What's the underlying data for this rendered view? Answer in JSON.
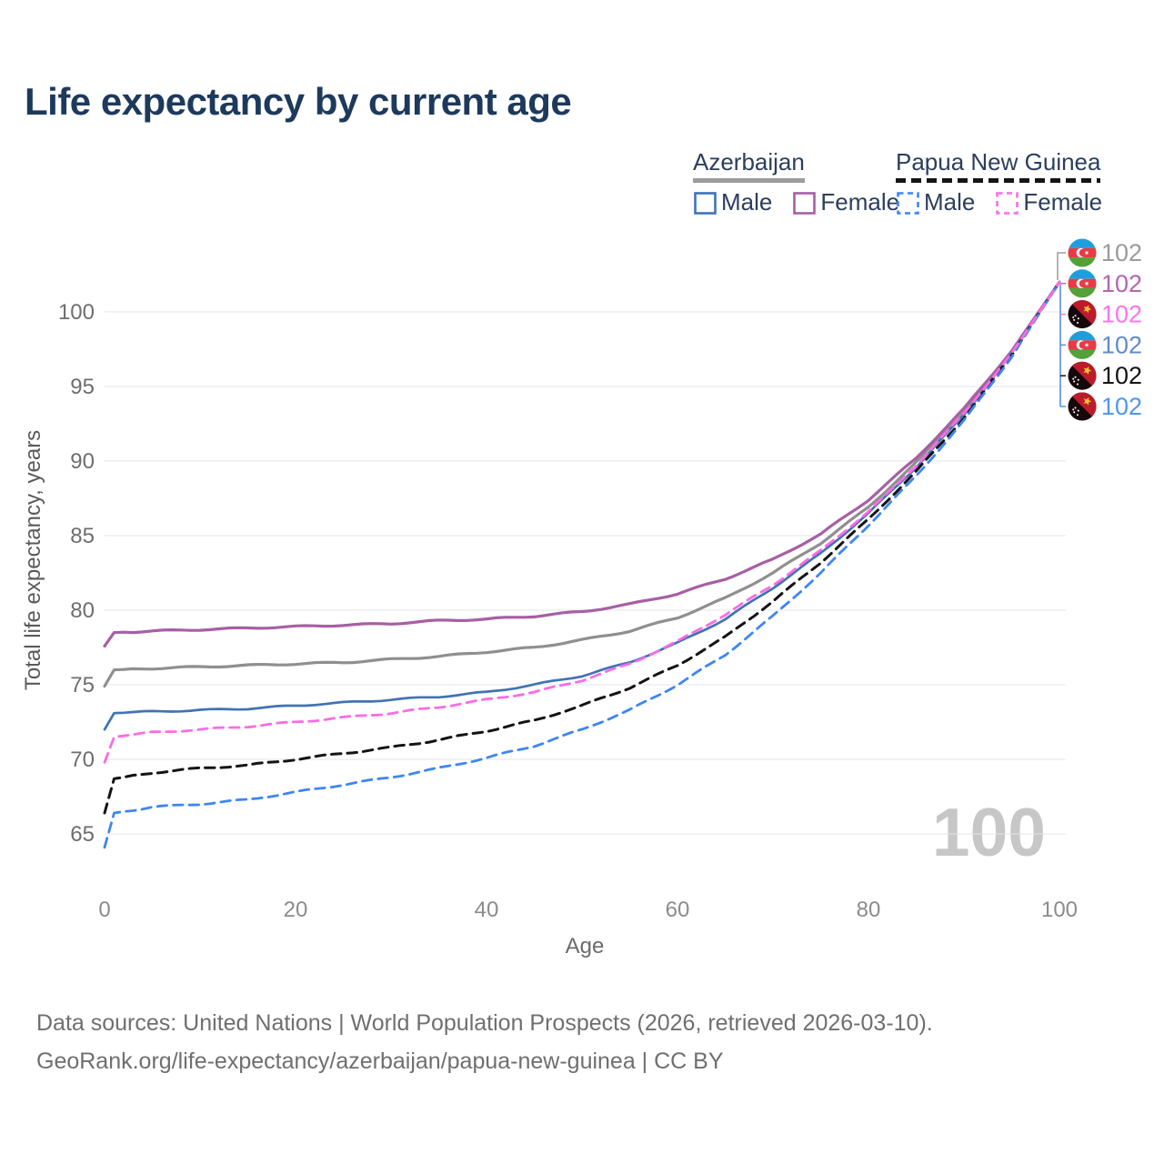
{
  "title": "Life expectancy by current age",
  "legend": {
    "groups": [
      {
        "country": "Azerbaijan",
        "underline": {
          "style": "solid",
          "color": "#9c9c9c"
        },
        "items": [
          {
            "label": "Male",
            "color": "#4173b5",
            "dash": false
          },
          {
            "label": "Female",
            "color": "#a75fa4",
            "dash": false
          }
        ]
      },
      {
        "country": "Papua New Guinea",
        "underline": {
          "style": "dashed",
          "color": "#151515"
        },
        "items": [
          {
            "label": "Male",
            "color": "#3e86f2",
            "dash": true
          },
          {
            "label": "Female",
            "color": "#fb6ce4",
            "dash": true
          }
        ]
      }
    ]
  },
  "chart_data": {
    "type": "line",
    "title": "Life expectancy by current age",
    "xlabel": "Age",
    "ylabel": "Total life expectancy, years",
    "xlim": [
      0,
      100
    ],
    "ylim": [
      63,
      103
    ],
    "xticks": [
      0,
      20,
      40,
      60,
      80,
      100
    ],
    "yticks": [
      65,
      70,
      75,
      80,
      85,
      90,
      95,
      100
    ],
    "grid": true,
    "watermark": "100",
    "ages": [
      0,
      1,
      5,
      10,
      15,
      20,
      25,
      30,
      35,
      40,
      45,
      50,
      55,
      60,
      65,
      70,
      75,
      80,
      85,
      90,
      95,
      100
    ],
    "series": [
      {
        "id": "azerbaijan-both",
        "name": "Azerbaijan Both sexes",
        "country": "Azerbaijan",
        "sex": "Both",
        "color": "#8f8f8f",
        "dash": false,
        "width": 3.2,
        "values": [
          74.9,
          76.0,
          76.1,
          76.2,
          76.3,
          76.4,
          76.5,
          76.7,
          76.9,
          77.2,
          77.5,
          78.0,
          78.6,
          79.5,
          80.8,
          82.5,
          84.5,
          86.9,
          89.9,
          93.3,
          97.3,
          102
        ]
      },
      {
        "id": "azerbaijan-female",
        "name": "Azerbaijan Female",
        "country": "Azerbaijan",
        "sex": "Female",
        "color": "#a75fa4",
        "dash": false,
        "width": 3.2,
        "values": [
          77.6,
          78.5,
          78.6,
          78.7,
          78.8,
          78.9,
          79.0,
          79.1,
          79.3,
          79.4,
          79.6,
          79.9,
          80.4,
          81.1,
          82.1,
          83.4,
          85.1,
          87.4,
          90.2,
          93.5,
          97.4,
          102
        ]
      },
      {
        "id": "azerbaijan-male",
        "name": "Azerbaijan Male",
        "country": "Azerbaijan",
        "sex": "Male",
        "color": "#4173b5",
        "dash": false,
        "width": 2.7,
        "values": [
          72.0,
          73.1,
          73.2,
          73.3,
          73.4,
          73.6,
          73.8,
          74.0,
          74.2,
          74.5,
          75.0,
          75.6,
          76.5,
          77.8,
          79.4,
          81.5,
          83.8,
          86.5,
          89.6,
          93.1,
          97.2,
          102
        ]
      },
      {
        "id": "papua-new-guinea-both",
        "name": "Papua New Guinea Both sexes",
        "country": "Papua New Guinea",
        "sex": "Both",
        "color": "#141414",
        "dash": true,
        "width": 3,
        "values": [
          66.4,
          68.7,
          69.1,
          69.4,
          69.6,
          70.0,
          70.4,
          70.8,
          71.3,
          71.9,
          72.6,
          73.6,
          74.8,
          76.3,
          78.2,
          80.6,
          83.2,
          86.1,
          89.3,
          92.9,
          97.1,
          102
        ]
      },
      {
        "id": "papua-new-guinea-male",
        "name": "Papua New Guinea Male",
        "country": "Papua New Guinea",
        "sex": "Male",
        "color": "#3e86f2",
        "dash": true,
        "width": 2.8,
        "values": [
          64.1,
          66.4,
          66.8,
          67.0,
          67.3,
          67.8,
          68.3,
          68.8,
          69.4,
          70.1,
          70.9,
          72.0,
          73.3,
          75.0,
          77.0,
          79.6,
          82.5,
          85.7,
          89.0,
          92.7,
          97.0,
          102
        ]
      },
      {
        "id": "papua-new-guinea-female",
        "name": "Papua New Guinea Female",
        "country": "Papua New Guinea",
        "sex": "Female",
        "color": "#fb6ce4",
        "dash": true,
        "width": 2.8,
        "values": [
          69.8,
          71.5,
          71.8,
          72.0,
          72.2,
          72.5,
          72.8,
          73.1,
          73.5,
          74.0,
          74.5,
          75.3,
          76.4,
          77.9,
          79.7,
          81.7,
          84.0,
          86.6,
          89.7,
          93.2,
          97.2,
          102
        ]
      }
    ],
    "end_labels": [
      {
        "flag": "az",
        "value": "102",
        "color": "#9b9b9b",
        "series": "azerbaijan-both"
      },
      {
        "flag": "az",
        "value": "102",
        "color": "#b464ae",
        "series": "azerbaijan-female"
      },
      {
        "flag": "png",
        "value": "102",
        "color": "#ff74ec",
        "series": "papua-new-guinea-female"
      },
      {
        "flag": "az",
        "value": "102",
        "color": "#5f8ccc",
        "series": "azerbaijan-male"
      },
      {
        "flag": "png",
        "value": "102",
        "color": "#141414",
        "series": "papua-new-guinea-both"
      },
      {
        "flag": "png",
        "value": "102",
        "color": "#4e97f0",
        "series": "papua-new-guinea-male"
      }
    ]
  },
  "footer": {
    "line1": "Data sources: United Nations | World Population Prospects (2026, retrieved 2026-03-10).",
    "line2": "GeoRank.org/life-expectancy/azerbaijan/papua-new-guinea | CC BY"
  }
}
